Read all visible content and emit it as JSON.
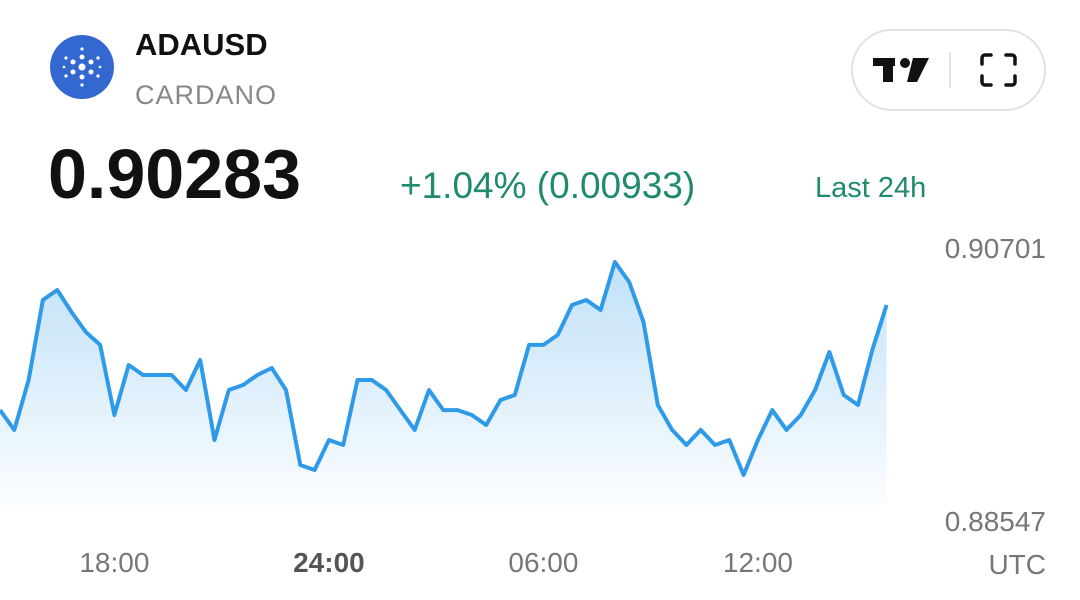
{
  "header": {
    "symbol": "ADAUSD",
    "name": "CARDANO",
    "price": "0.90283",
    "change": "+1.04% (0.00933)",
    "period": "Last 24h"
  },
  "chart_data": {
    "type": "line",
    "x_unit": "UTC",
    "xlim": [
      14.8,
      39.75
    ],
    "xticks": [
      {
        "value": 18,
        "label": "18:00"
      },
      {
        "value": 24,
        "label": "24:00"
      },
      {
        "value": 30,
        "label": "06:00"
      },
      {
        "value": 36,
        "label": "12:00"
      }
    ],
    "ylim": [
      0.88547,
      0.90701
    ],
    "yticks": [
      0.90701,
      0.88547
    ],
    "series": [
      {
        "color": "#2f9be8",
        "x": [
          14.8,
          15.2,
          15.6,
          16,
          16.4,
          16.8,
          17.2,
          17.6,
          18,
          18.4,
          18.8,
          19.2,
          19.6,
          20,
          20.4,
          20.8,
          21.2,
          21.6,
          22,
          22.4,
          22.8,
          23.2,
          23.6,
          24,
          24.4,
          24.8,
          25.2,
          25.6,
          26,
          26.4,
          26.8,
          27.2,
          27.6,
          28,
          28.4,
          28.8,
          29.2,
          29.6,
          30,
          30.4,
          30.8,
          31.2,
          31.6,
          32,
          32.4,
          32.8,
          33.2,
          33.6,
          34,
          34.4,
          34.8,
          35.2,
          35.6,
          36,
          36.4,
          36.8,
          37.2,
          37.6,
          38,
          38.4,
          38.8,
          39.2,
          39.6
        ],
        "values": [
          0.89349,
          0.89181,
          0.89603,
          0.90279,
          0.90363,
          0.90177,
          0.90008,
          0.89899,
          0.89307,
          0.8973,
          0.89645,
          0.89645,
          0.89645,
          0.89518,
          0.89772,
          0.89096,
          0.89518,
          0.89561,
          0.89645,
          0.89704,
          0.89518,
          0.88885,
          0.88843,
          0.89096,
          0.89054,
          0.89603,
          0.89603,
          0.89518,
          0.89349,
          0.89181,
          0.89518,
          0.89349,
          0.89349,
          0.89307,
          0.89223,
          0.89434,
          0.89476,
          0.89899,
          0.89899,
          0.89983,
          0.90236,
          0.90279,
          0.90194,
          0.906,
          0.90431,
          0.90093,
          0.89392,
          0.89181,
          0.89054,
          0.89181,
          0.89054,
          0.89096,
          0.888,
          0.89096,
          0.89349,
          0.89181,
          0.89307,
          0.89518,
          0.89839,
          0.89476,
          0.89392,
          0.89856,
          0.90236
        ]
      }
    ]
  }
}
